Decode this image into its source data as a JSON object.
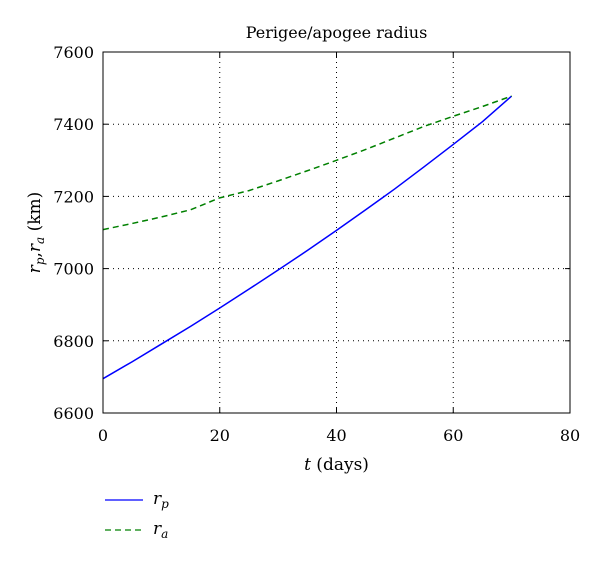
{
  "chart_data": {
    "type": "line",
    "title": "Perigee/apogee radius",
    "xlabel": {
      "var": "t",
      "unit": " (days)"
    },
    "ylabel": {
      "var1": "r",
      "sub1": "p",
      "sep": ",",
      "var2": "r",
      "sub2": "a",
      "unit": " (km)"
    },
    "xlim": [
      0,
      80
    ],
    "ylim": [
      6600,
      7600
    ],
    "xticks": [
      0,
      20,
      40,
      60,
      80
    ],
    "yticks": [
      6600,
      6800,
      7000,
      7200,
      7400,
      7600
    ],
    "xtick_labels": [
      "0",
      "20",
      "40",
      "60",
      "80"
    ],
    "ytick_labels": [
      "6600",
      "6800",
      "7000",
      "7200",
      "7400",
      "7600"
    ],
    "grid": true,
    "legend_position": "below",
    "series": [
      {
        "name": "r_p",
        "color": "#0000ff",
        "dash": "solid",
        "x": [
          0,
          5,
          10,
          15,
          20,
          25,
          30,
          35,
          40,
          45,
          50,
          55,
          60,
          65,
          70
        ],
        "y": [
          6695,
          6742,
          6791,
          6840,
          6891,
          6943,
          6996,
          7050,
          7106,
          7163,
          7221,
          7282,
          7344,
          7407,
          7478
        ]
      },
      {
        "name": "r_a",
        "color": "#008000",
        "dash": "dashed",
        "x": [
          0,
          5,
          10,
          15,
          20,
          25,
          30,
          35,
          40,
          45,
          50,
          55,
          60,
          65,
          70
        ],
        "y": [
          7108,
          7125,
          7143,
          7163,
          7196,
          7216,
          7243,
          7271,
          7300,
          7330,
          7362,
          7394,
          7422,
          7449,
          7478
        ]
      }
    ],
    "legend": [
      {
        "var": "r",
        "sub": "p"
      },
      {
        "var": "r",
        "sub": "a"
      }
    ]
  }
}
